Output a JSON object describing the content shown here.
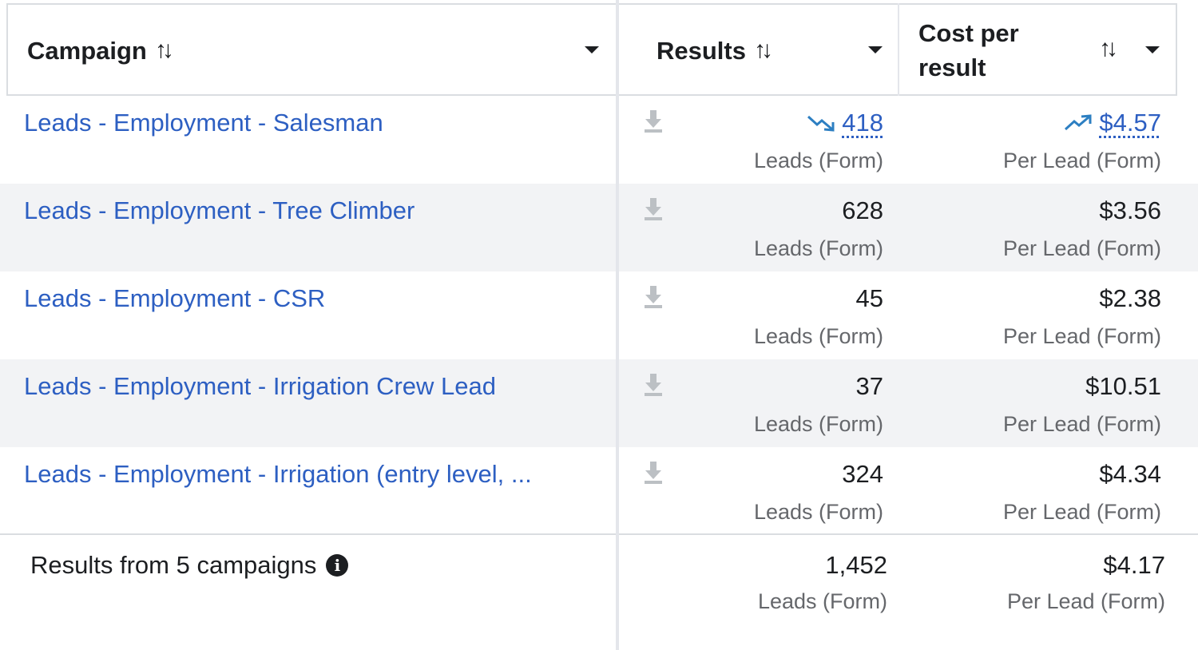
{
  "header": {
    "campaign_label": "Campaign",
    "results_label": "Results",
    "cost_label_line1": "Cost per",
    "cost_label_line2": "result",
    "sort_glyph": "↑↓"
  },
  "rows": [
    {
      "name": "Leads - Employment - Salesman",
      "results": "418",
      "results_type": "Leads (Form)",
      "cost": "$4.57",
      "cost_type": "Per Lead (Form)",
      "results_trend": "down",
      "cost_trend": "up"
    },
    {
      "name": "Leads - Employment - Tree Climber",
      "results": "628",
      "results_type": "Leads (Form)",
      "cost": "$3.56",
      "cost_type": "Per Lead (Form)"
    },
    {
      "name": "Leads - Employment - CSR",
      "results": "45",
      "results_type": "Leads (Form)",
      "cost": "$2.38",
      "cost_type": "Per Lead (Form)"
    },
    {
      "name": "Leads - Employment - Irrigation Crew Lead",
      "results": "37",
      "results_type": "Leads (Form)",
      "cost": "$10.51",
      "cost_type": "Per Lead (Form)"
    },
    {
      "name": "Leads - Employment - Irrigation (entry level, ...",
      "results": "324",
      "results_type": "Leads (Form)",
      "cost": "$4.34",
      "cost_type": "Per Lead (Form)"
    }
  ],
  "footer": {
    "summary": "Results from 5 campaigns",
    "info_glyph": "i",
    "results": "1,452",
    "results_type": "Leads (Form)",
    "cost": "$4.17",
    "cost_type": "Per Lead (Form)"
  },
  "colors": {
    "link": "#2d5fc2",
    "trend": "#2d7fc2",
    "shaded_row": "#f2f3f5",
    "muted_text": "#65676b"
  }
}
